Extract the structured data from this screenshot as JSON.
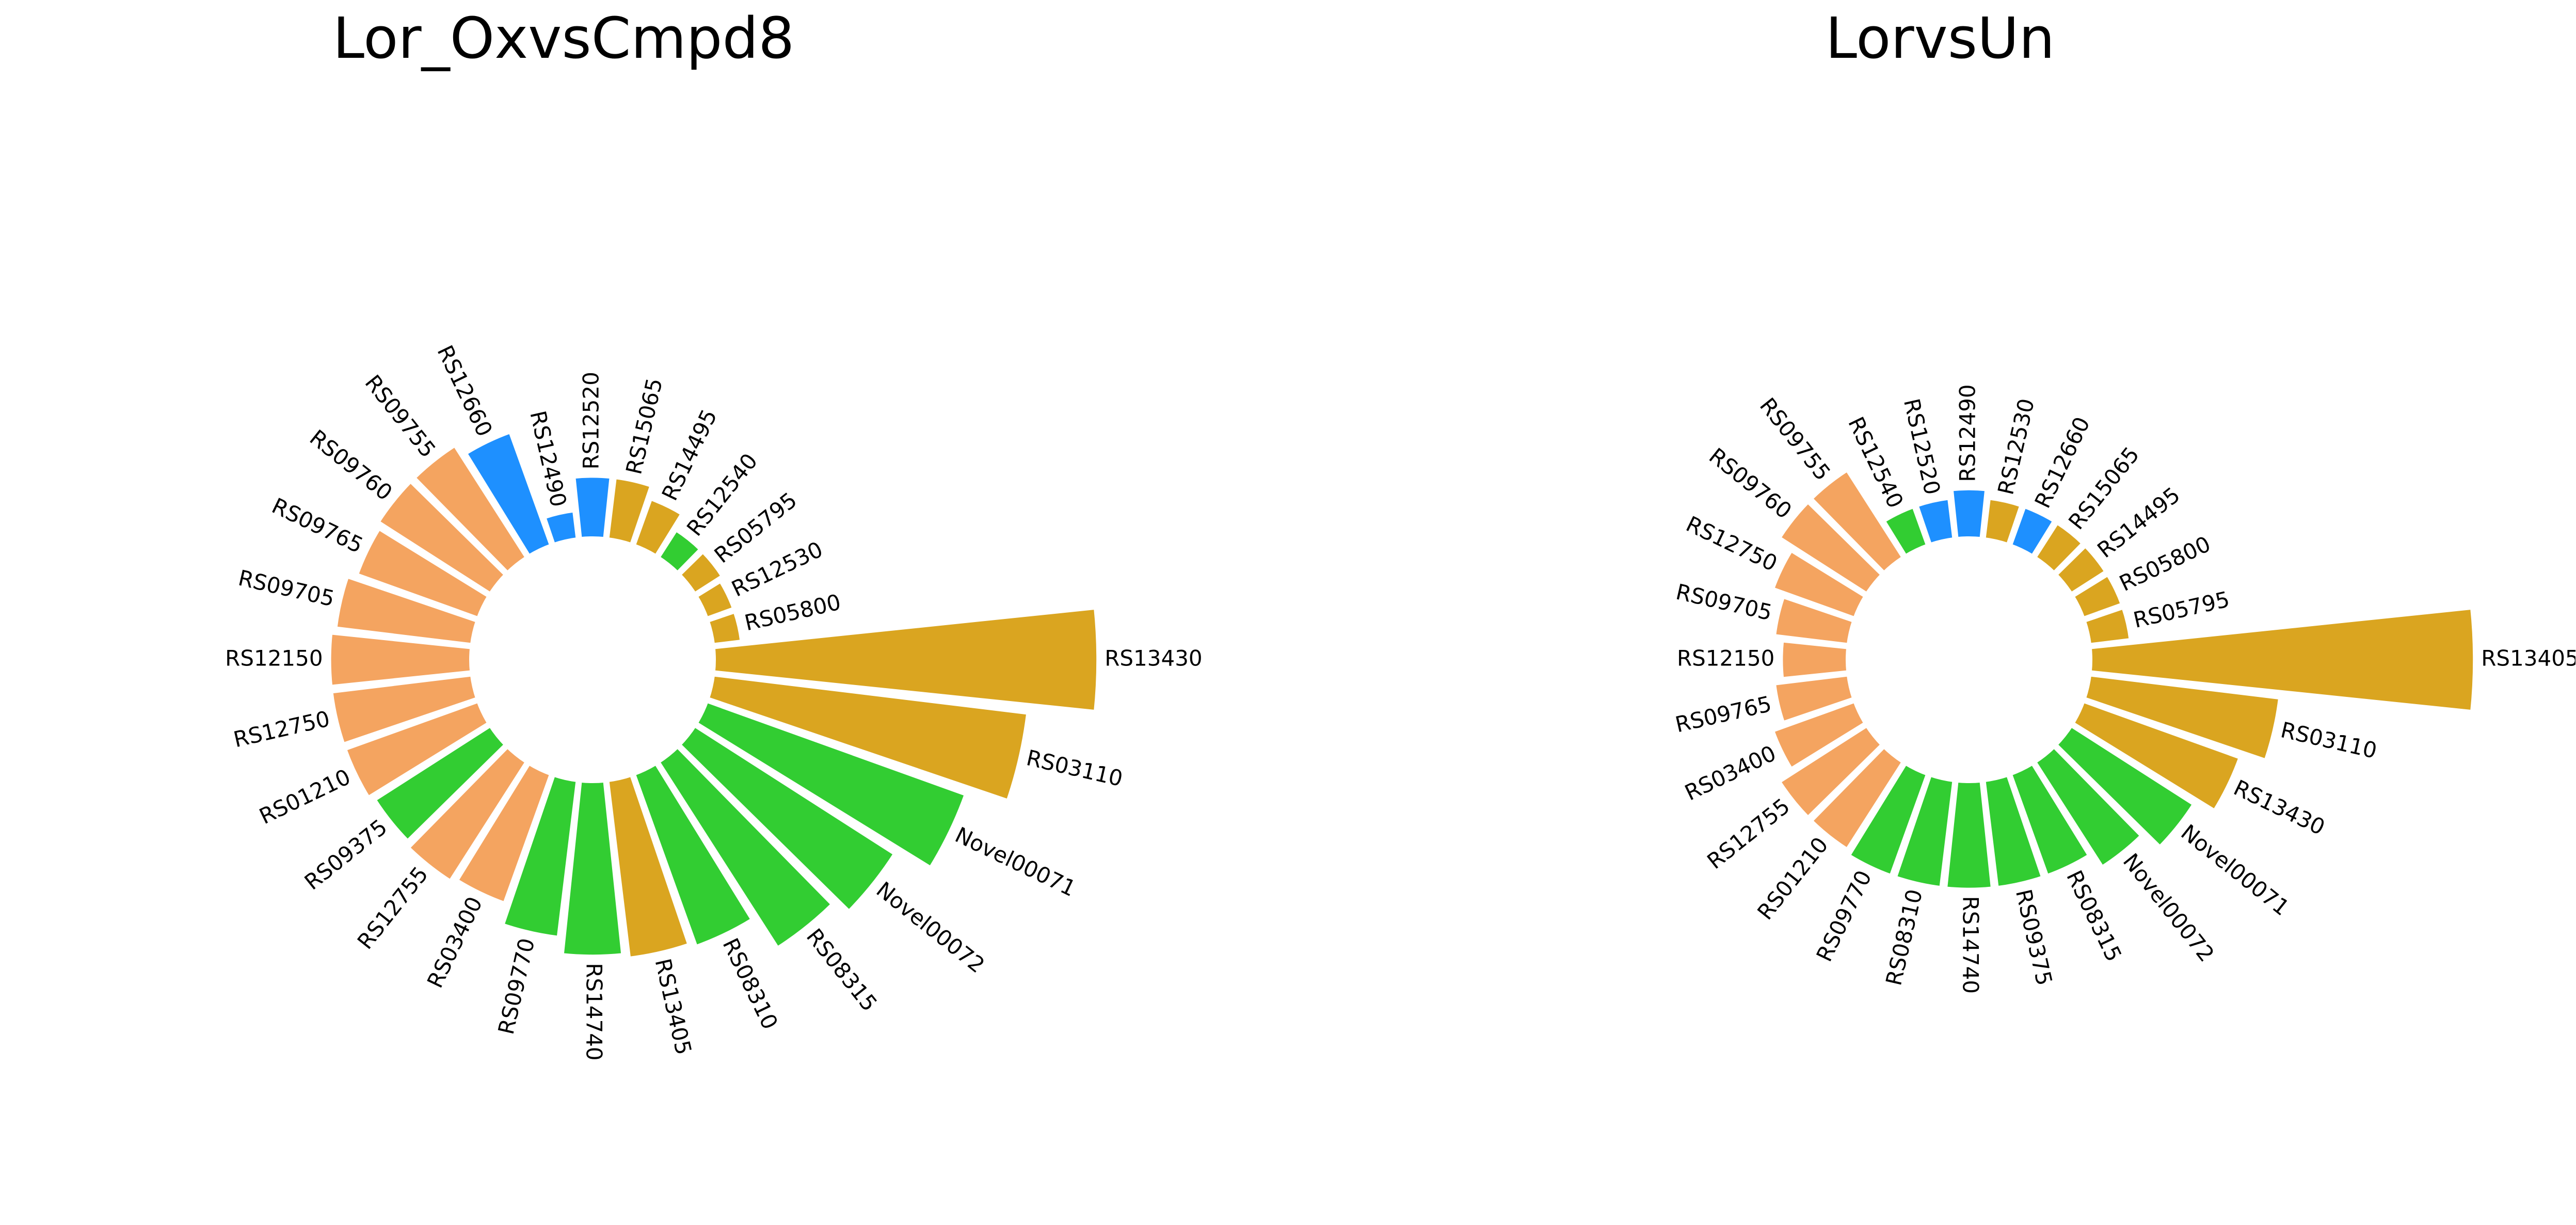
{
  "colors": {
    "salmon": "#F4A460",
    "blue": "#1E90FF",
    "goldenrod": "#DAA520",
    "green": "#32CD32"
  },
  "chart_data": [
    {
      "type": "circular-bar",
      "title": "Lor_OxvsCmpd8",
      "bars": [
        {
          "label": "RS13430",
          "value": 0.92,
          "color": "goldenrod"
        },
        {
          "label": "RS03110",
          "value": 0.76,
          "color": "goldenrod"
        },
        {
          "label": "Novel00071",
          "value": 0.66,
          "color": "green"
        },
        {
          "label": "Novel00072",
          "value": 0.57,
          "color": "green"
        },
        {
          "label": "RS08315",
          "value": 0.53,
          "color": "green"
        },
        {
          "label": "RS08310",
          "value": 0.44,
          "color": "green"
        },
        {
          "label": "RS13405",
          "value": 0.43,
          "color": "goldenrod"
        },
        {
          "label": "RS14740",
          "value": 0.42,
          "color": "green"
        },
        {
          "label": "RS09770",
          "value": 0.38,
          "color": "green"
        },
        {
          "label": "RS03400",
          "value": 0.33,
          "color": "salmon"
        },
        {
          "label": "RS12755",
          "value": 0.34,
          "color": "salmon"
        },
        {
          "label": "RS09375",
          "value": 0.33,
          "color": "green"
        },
        {
          "label": "RS01210",
          "value": 0.34,
          "color": "salmon"
        },
        {
          "label": "RS12750",
          "value": 0.34,
          "color": "salmon"
        },
        {
          "label": "RS12150",
          "value": 0.34,
          "color": "salmon"
        },
        {
          "label": "RS09705",
          "value": 0.33,
          "color": "salmon"
        },
        {
          "label": "RS09765",
          "value": 0.31,
          "color": "salmon"
        },
        {
          "label": "RS09760",
          "value": 0.32,
          "color": "salmon"
        },
        {
          "label": "RS09755",
          "value": 0.32,
          "color": "salmon"
        },
        {
          "label": "RS12660",
          "value": 0.29,
          "color": "blue"
        },
        {
          "label": "RS12490",
          "value": 0.07,
          "color": "blue"
        },
        {
          "label": "RS12520",
          "value": 0.15,
          "color": "blue"
        },
        {
          "label": "RS15065",
          "value": 0.15,
          "color": "goldenrod"
        },
        {
          "label": "RS14495",
          "value": 0.12,
          "color": "goldenrod"
        },
        {
          "label": "RS12540",
          "value": 0.08,
          "color": "green"
        },
        {
          "label": "RS05795",
          "value": 0.08,
          "color": "goldenrod"
        },
        {
          "label": "RS12530",
          "value": 0.07,
          "color": "goldenrod"
        },
        {
          "label": "RS05800",
          "value": 0.07,
          "color": "goldenrod"
        }
      ]
    },
    {
      "type": "circular-bar",
      "title": "LorvsUn",
      "bars": [
        {
          "label": "RS13405",
          "value": 0.92,
          "color": "goldenrod"
        },
        {
          "label": "RS03110",
          "value": 0.46,
          "color": "goldenrod"
        },
        {
          "label": "RS13430",
          "value": 0.4,
          "color": "goldenrod"
        },
        {
          "label": "Novel00071",
          "value": 0.35,
          "color": "green"
        },
        {
          "label": "Novel00072",
          "value": 0.3,
          "color": "green"
        },
        {
          "label": "RS08315",
          "value": 0.26,
          "color": "green"
        },
        {
          "label": "RS09375",
          "value": 0.26,
          "color": "green"
        },
        {
          "label": "RS14740",
          "value": 0.26,
          "color": "green"
        },
        {
          "label": "RS08310",
          "value": 0.26,
          "color": "green"
        },
        {
          "label": "RS09770",
          "value": 0.26,
          "color": "green"
        },
        {
          "label": "RS01210",
          "value": 0.25,
          "color": "salmon"
        },
        {
          "label": "RS12755",
          "value": 0.25,
          "color": "salmon"
        },
        {
          "label": "RS03400",
          "value": 0.21,
          "color": "salmon"
        },
        {
          "label": "RS09765",
          "value": 0.18,
          "color": "salmon"
        },
        {
          "label": "RS12150",
          "value": 0.16,
          "color": "salmon"
        },
        {
          "label": "RS09705",
          "value": 0.18,
          "color": "salmon"
        },
        {
          "label": "RS12750",
          "value": 0.21,
          "color": "salmon"
        },
        {
          "label": "RS09760",
          "value": 0.25,
          "color": "salmon"
        },
        {
          "label": "RS09755",
          "value": 0.25,
          "color": "salmon"
        },
        {
          "label": "RS12540",
          "value": 0.1,
          "color": "green"
        },
        {
          "label": "RS12520",
          "value": 0.1,
          "color": "blue"
        },
        {
          "label": "RS12490",
          "value": 0.12,
          "color": "blue"
        },
        {
          "label": "RS12530",
          "value": 0.1,
          "color": "goldenrod"
        },
        {
          "label": "RS12660",
          "value": 0.1,
          "color": "blue"
        },
        {
          "label": "RS15065",
          "value": 0.1,
          "color": "goldenrod"
        },
        {
          "label": "RS14495",
          "value": 0.1,
          "color": "goldenrod"
        },
        {
          "label": "RS05800",
          "value": 0.1,
          "color": "goldenrod"
        },
        {
          "label": "RS05795",
          "value": 0.1,
          "color": "goldenrod"
        }
      ]
    }
  ]
}
